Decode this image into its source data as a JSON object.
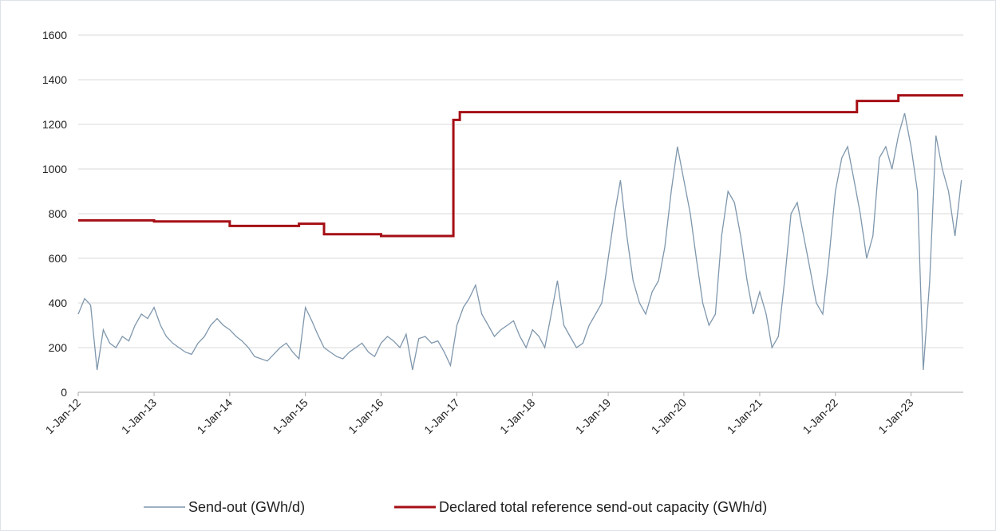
{
  "chart_data": {
    "type": "line",
    "xlim": [
      "2012-01-01",
      "2023-09-10"
    ],
    "ylim": [
      0,
      1600
    ],
    "yticks": [
      0,
      200,
      400,
      600,
      800,
      1000,
      1200,
      1400,
      1600
    ],
    "xticks": [
      {
        "value": "2012-01-01",
        "label": "1-Jan-12"
      },
      {
        "value": "2013-01-01",
        "label": "1-Jan-13"
      },
      {
        "value": "2014-01-01",
        "label": "1-Jan-14"
      },
      {
        "value": "2015-01-01",
        "label": "1-Jan-15"
      },
      {
        "value": "2016-01-01",
        "label": "1-Jan-16"
      },
      {
        "value": "2017-01-01",
        "label": "1-Jan-17"
      },
      {
        "value": "2018-01-01",
        "label": "1-Jan-18"
      },
      {
        "value": "2019-01-01",
        "label": "1-Jan-19"
      },
      {
        "value": "2020-01-01",
        "label": "1-Jan-20"
      },
      {
        "value": "2021-01-01",
        "label": "1-Jan-21"
      },
      {
        "value": "2022-01-01",
        "label": "1-Jan-22"
      },
      {
        "value": "2023-01-01",
        "label": "1-Jan-23"
      }
    ],
    "grid": true,
    "legend": "bottom",
    "series": [
      {
        "name": "Send-out (GWh/d)",
        "color": "#7f97ad",
        "step": false,
        "x": [
          "2012-01-01",
          "2012-02-01",
          "2012-03-01",
          "2012-04-01",
          "2012-05-01",
          "2012-06-01",
          "2012-07-01",
          "2012-08-01",
          "2012-09-01",
          "2012-10-01",
          "2012-11-01",
          "2012-12-01",
          "2013-01-01",
          "2013-02-01",
          "2013-03-01",
          "2013-04-01",
          "2013-05-01",
          "2013-06-01",
          "2013-07-01",
          "2013-08-01",
          "2013-09-01",
          "2013-10-01",
          "2013-11-01",
          "2013-12-01",
          "2014-01-01",
          "2014-02-01",
          "2014-03-01",
          "2014-04-01",
          "2014-05-01",
          "2014-06-01",
          "2014-07-01",
          "2014-08-01",
          "2014-09-01",
          "2014-10-01",
          "2014-11-01",
          "2014-12-01",
          "2015-01-01",
          "2015-02-01",
          "2015-03-01",
          "2015-04-01",
          "2015-05-01",
          "2015-06-01",
          "2015-07-01",
          "2015-08-01",
          "2015-09-01",
          "2015-10-01",
          "2015-11-01",
          "2015-12-01",
          "2016-01-01",
          "2016-02-01",
          "2016-03-01",
          "2016-04-01",
          "2016-05-01",
          "2016-06-01",
          "2016-07-01",
          "2016-08-01",
          "2016-09-01",
          "2016-10-01",
          "2016-11-01",
          "2016-12-01",
          "2017-01-01",
          "2017-02-01",
          "2017-03-01",
          "2017-04-01",
          "2017-05-01",
          "2017-06-01",
          "2017-07-01",
          "2017-08-01",
          "2017-09-01",
          "2017-10-01",
          "2017-11-01",
          "2017-12-01",
          "2018-01-01",
          "2018-02-01",
          "2018-03-01",
          "2018-04-01",
          "2018-05-01",
          "2018-06-01",
          "2018-07-01",
          "2018-08-01",
          "2018-09-01",
          "2018-10-01",
          "2018-11-01",
          "2018-12-01",
          "2019-01-01",
          "2019-02-01",
          "2019-03-01",
          "2019-04-01",
          "2019-05-01",
          "2019-06-01",
          "2019-07-01",
          "2019-08-01",
          "2019-09-01",
          "2019-10-01",
          "2019-11-01",
          "2019-12-01",
          "2020-01-01",
          "2020-02-01",
          "2020-03-01",
          "2020-04-01",
          "2020-05-01",
          "2020-06-01",
          "2020-07-01",
          "2020-08-01",
          "2020-09-01",
          "2020-10-01",
          "2020-11-01",
          "2020-12-01",
          "2021-01-01",
          "2021-02-01",
          "2021-03-01",
          "2021-04-01",
          "2021-05-01",
          "2021-06-01",
          "2021-07-01",
          "2021-08-01",
          "2021-09-01",
          "2021-10-01",
          "2021-11-01",
          "2021-12-01",
          "2022-01-01",
          "2022-02-01",
          "2022-03-01",
          "2022-04-01",
          "2022-05-01",
          "2022-06-01",
          "2022-07-01",
          "2022-08-01",
          "2022-09-01",
          "2022-10-01",
          "2022-11-01",
          "2022-12-01",
          "2023-01-01",
          "2023-02-01",
          "2023-03-01",
          "2023-04-01",
          "2023-05-01",
          "2023-06-01",
          "2023-07-01",
          "2023-08-01",
          "2023-09-01"
        ],
        "values": [
          350,
          420,
          390,
          100,
          280,
          220,
          200,
          250,
          230,
          300,
          350,
          330,
          380,
          300,
          250,
          220,
          200,
          180,
          170,
          220,
          250,
          300,
          330,
          300,
          280,
          250,
          230,
          200,
          160,
          150,
          140,
          170,
          200,
          220,
          180,
          150,
          380,
          320,
          260,
          200,
          180,
          160,
          150,
          180,
          200,
          220,
          180,
          160,
          220,
          250,
          230,
          200,
          260,
          100,
          240,
          250,
          220,
          230,
          180,
          120,
          300,
          380,
          420,
          480,
          350,
          300,
          250,
          280,
          300,
          320,
          250,
          200,
          280,
          250,
          200,
          350,
          500,
          300,
          250,
          200,
          220,
          300,
          350,
          400,
          600,
          800,
          950,
          700,
          500,
          400,
          350,
          450,
          500,
          650,
          900,
          1100,
          950,
          800,
          600,
          400,
          300,
          350,
          700,
          900,
          850,
          700,
          500,
          350,
          450,
          350,
          200,
          250,
          500,
          800,
          850,
          700,
          550,
          400,
          350,
          600,
          900,
          1050,
          1100,
          950,
          800,
          600,
          700,
          1050,
          1100,
          1000,
          1150,
          1250,
          1100,
          900,
          100,
          500,
          1150,
          1000,
          900,
          700,
          950
        ]
      },
      {
        "name": "Declared total reference send-out capacity (GWh/d)",
        "color": "#a50f15",
        "step": true,
        "x": [
          "2012-01-01",
          "2013-01-01",
          "2014-01-01",
          "2014-12-01",
          "2015-04-01",
          "2016-01-01",
          "2016-12-15",
          "2017-01-15",
          "2022-04-15",
          "2022-11-01",
          "2023-09-10"
        ],
        "values": [
          770,
          765,
          745,
          755,
          708,
          700,
          1220,
          1255,
          1305,
          1330,
          1330
        ]
      }
    ]
  }
}
